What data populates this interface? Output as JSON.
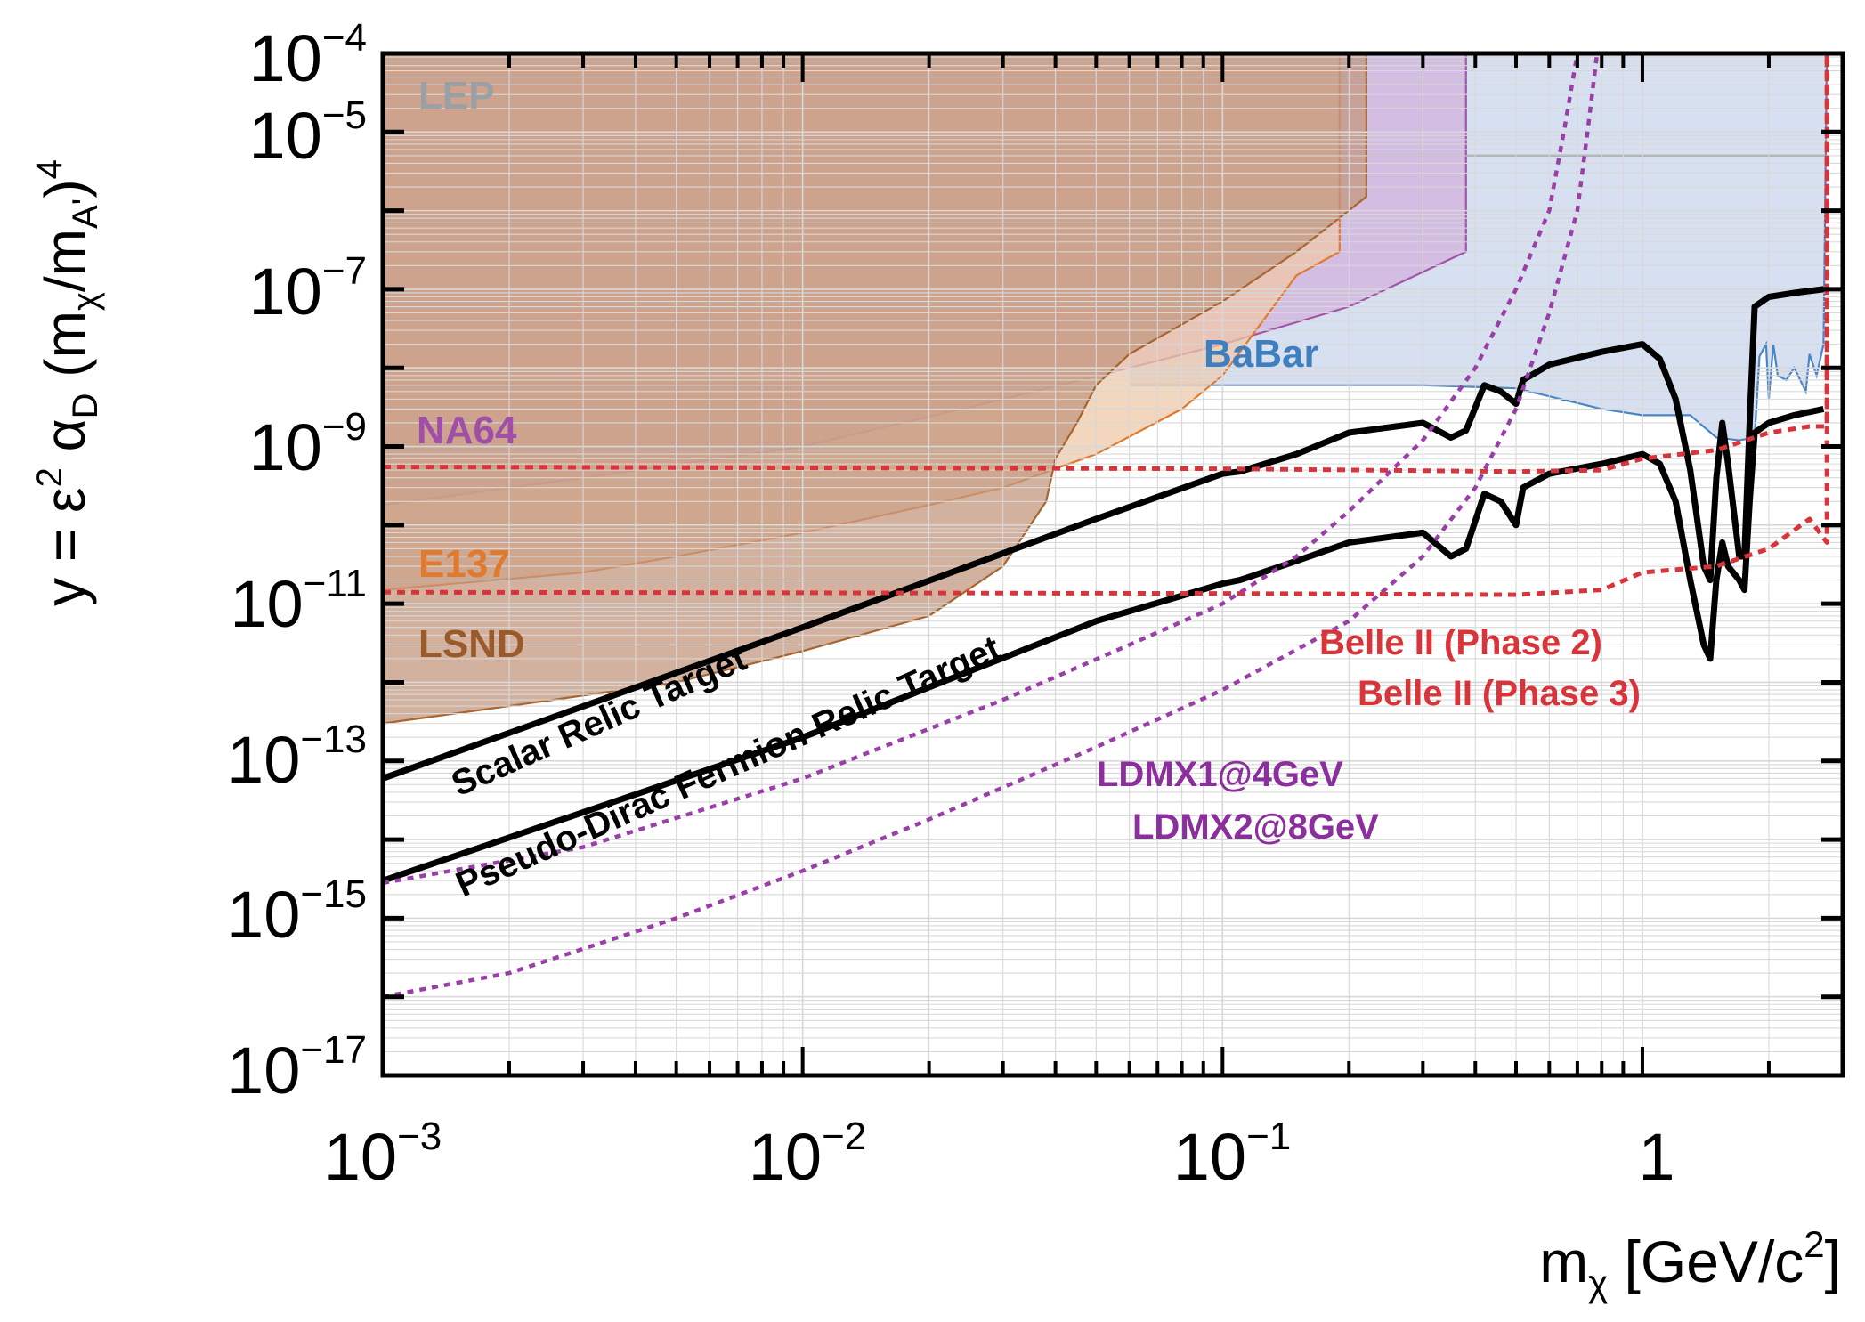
{
  "chart_data": {
    "type": "line",
    "title": "",
    "xscale": "log",
    "yscale": "log",
    "xlim": [
      0.001,
      3
    ],
    "ylim": [
      1e-17,
      0.0001
    ],
    "grid": true,
    "xlabel": {
      "base": "m",
      "sub": "χ",
      "unit": " [GeV/c",
      "sup": "2",
      "end": "]"
    },
    "ylabel": {
      "p1": "y = ε",
      "sup1": "2",
      "p2": " α",
      "sub1": "D",
      "p3": " (m",
      "sub2": "χ",
      "p4": "/m",
      "sub3": "A'",
      "p5": ")",
      "sup2": "4"
    },
    "x_ticks": [
      {
        "value": 0.001,
        "base": "10",
        "exp": "−3"
      },
      {
        "value": 0.01,
        "base": "10",
        "exp": "−2"
      },
      {
        "value": 0.1,
        "base": "10",
        "exp": "−1"
      },
      {
        "value": 1,
        "base": "1",
        "exp": ""
      }
    ],
    "y_ticks": [
      {
        "value": 0.0001,
        "base": "10",
        "exp": "−4"
      },
      {
        "value": 1e-05,
        "base": "10",
        "exp": "−5"
      },
      {
        "value": 1e-07,
        "base": "10",
        "exp": "−7"
      },
      {
        "value": 1e-09,
        "base": "10",
        "exp": "−9"
      },
      {
        "value": 1e-11,
        "base": "10",
        "exp": "−11"
      },
      {
        "value": 1e-13,
        "base": "10",
        "exp": "−13"
      },
      {
        "value": 1e-15,
        "base": "10",
        "exp": "−15"
      },
      {
        "value": 1e-17,
        "base": "10",
        "exp": "−17"
      }
    ],
    "excluded_regions": [
      {
        "name": "BaBar",
        "fill": "#c9d5ec",
        "stroke": "#4a86c5",
        "boundary": [
          [
            0.06,
            6e-09
          ],
          [
            0.3,
            6e-09
          ],
          [
            0.5,
            5.5e-09
          ],
          [
            0.8,
            3e-09
          ],
          [
            1.0,
            2.5e-09
          ],
          [
            1.3,
            2.5e-09
          ],
          [
            1.5,
            1.3e-09
          ],
          [
            1.7,
            1.2e-09
          ],
          [
            1.85,
            1.3e-09
          ],
          [
            1.9,
            1.4e-08
          ],
          [
            1.97,
            2e-08
          ],
          [
            2.0,
            4e-09
          ],
          [
            2.05,
            2e-08
          ],
          [
            2.1,
            8e-09
          ],
          [
            2.2,
            7e-09
          ],
          [
            2.3,
            1e-08
          ],
          [
            2.45,
            5e-09
          ],
          [
            2.5,
            1.5e-08
          ],
          [
            2.6,
            8e-09
          ],
          [
            2.7,
            2e-08
          ],
          [
            2.75,
            0.0001
          ]
        ]
      },
      {
        "name": "LEP",
        "fill": "#c9d5ec",
        "stroke": "#8a8a8a",
        "boundary": [
          [
            0.001,
            5e-06
          ],
          [
            2.75,
            5e-06
          ]
        ]
      },
      {
        "name": "NA64",
        "fill": "#d2b2dc",
        "stroke": "#a454a8",
        "boundary": [
          [
            0.001,
            1.8e-10
          ],
          [
            0.003,
            4e-10
          ],
          [
            0.01,
            1e-09
          ],
          [
            0.03,
            4e-09
          ],
          [
            0.06,
            1e-08
          ],
          [
            0.1,
            2e-08
          ],
          [
            0.2,
            6e-08
          ],
          [
            0.38,
            3e-07
          ],
          [
            0.38,
            0.0001
          ]
        ]
      },
      {
        "name": "E137",
        "fill": "#efc8a8",
        "stroke": "#e07a2e",
        "boundary": [
          [
            0.001,
            1.5e-11
          ],
          [
            0.003,
            2.5e-11
          ],
          [
            0.005,
            4e-11
          ],
          [
            0.01,
            8e-11
          ],
          [
            0.02,
            1.8e-10
          ],
          [
            0.03,
            3e-10
          ],
          [
            0.05,
            8e-10
          ],
          [
            0.08,
            3e-09
          ],
          [
            0.1,
            8e-09
          ],
          [
            0.15,
            1.5e-07
          ],
          [
            0.19,
            3e-07
          ],
          [
            0.19,
            0.0001
          ]
        ]
      },
      {
        "name": "LSND",
        "fill": "#c3977f",
        "stroke": "#a8652d",
        "boundary": [
          [
            0.001,
            3e-13
          ],
          [
            0.002,
            5e-13
          ],
          [
            0.005,
            1e-12
          ],
          [
            0.01,
            2.5e-12
          ],
          [
            0.02,
            7e-12
          ],
          [
            0.03,
            3e-11
          ],
          [
            0.038,
            2e-10
          ],
          [
            0.04,
            7e-10
          ],
          [
            0.045,
            2e-09
          ],
          [
            0.05,
            6e-09
          ],
          [
            0.06,
            1.5e-08
          ],
          [
            0.1,
            7e-08
          ],
          [
            0.15,
            3e-07
          ],
          [
            0.22,
            1.5e-06
          ],
          [
            0.22,
            0.0001
          ]
        ]
      }
    ],
    "series": [
      {
        "name": "Scalar Relic Target",
        "style": "solid-black",
        "points": [
          [
            0.001,
            6e-14
          ],
          [
            0.01,
            5e-12
          ],
          [
            0.05,
            1.2e-10
          ],
          [
            0.1,
            4.5e-10
          ],
          [
            0.11,
            4.8e-10
          ],
          [
            0.15,
            8e-10
          ],
          [
            0.2,
            1.5e-09
          ],
          [
            0.3,
            2e-09
          ],
          [
            0.35,
            1.3e-09
          ],
          [
            0.38,
            1.6e-09
          ],
          [
            0.42,
            6e-09
          ],
          [
            0.46,
            5e-09
          ],
          [
            0.5,
            3.5e-09
          ],
          [
            0.52,
            7e-09
          ],
          [
            0.6,
            1.1e-08
          ],
          [
            0.8,
            1.6e-08
          ],
          [
            1.0,
            2e-08
          ],
          [
            1.1,
            1.3e-08
          ],
          [
            1.2,
            4e-09
          ],
          [
            1.3,
            5e-10
          ],
          [
            1.4,
            3e-11
          ],
          [
            1.45,
            2e-11
          ],
          [
            1.5,
            4e-10
          ],
          [
            1.55,
            2e-09
          ],
          [
            1.6,
            6e-10
          ],
          [
            1.7,
            4e-11
          ],
          [
            1.75,
            4e-11
          ],
          [
            1.8,
            2e-09
          ],
          [
            1.85,
            6e-08
          ],
          [
            2.0,
            8e-08
          ],
          [
            2.3,
            9e-08
          ],
          [
            2.7,
            1e-07
          ]
        ]
      },
      {
        "name": "Pseudo-Dirac Fermion Relic Target",
        "style": "solid-black",
        "points": [
          [
            0.001,
            3e-15
          ],
          [
            0.01,
            2e-13
          ],
          [
            0.05,
            6e-12
          ],
          [
            0.1,
            1.8e-11
          ],
          [
            0.11,
            2e-11
          ],
          [
            0.15,
            3.5e-11
          ],
          [
            0.2,
            6e-11
          ],
          [
            0.3,
            8e-11
          ],
          [
            0.35,
            4e-11
          ],
          [
            0.38,
            5e-11
          ],
          [
            0.42,
            2.5e-10
          ],
          [
            0.46,
            2e-10
          ],
          [
            0.5,
            1e-10
          ],
          [
            0.52,
            3e-10
          ],
          [
            0.6,
            4.5e-10
          ],
          [
            0.8,
            6e-10
          ],
          [
            1.0,
            8e-10
          ],
          [
            1.1,
            6e-10
          ],
          [
            1.2,
            2e-10
          ],
          [
            1.3,
            2e-11
          ],
          [
            1.4,
            3e-12
          ],
          [
            1.45,
            2e-12
          ],
          [
            1.5,
            2e-11
          ],
          [
            1.55,
            6e-11
          ],
          [
            1.6,
            3e-11
          ],
          [
            1.7,
            2e-11
          ],
          [
            1.75,
            1.5e-11
          ],
          [
            1.8,
            2e-10
          ],
          [
            1.85,
            1.5e-09
          ],
          [
            2.0,
            2e-09
          ],
          [
            2.3,
            2.5e-09
          ],
          [
            2.7,
            3e-09
          ]
        ]
      },
      {
        "name": "Belle II (Phase 2)",
        "style": "dashed-red",
        "points": [
          [
            0.001,
            5.5e-10
          ],
          [
            0.1,
            5.2e-10
          ],
          [
            0.5,
            4.8e-10
          ],
          [
            0.8,
            5e-10
          ],
          [
            1.0,
            7e-10
          ],
          [
            1.5,
            9e-10
          ],
          [
            2.0,
            1.5e-09
          ],
          [
            2.5,
            1.8e-09
          ],
          [
            2.75,
            1.8e-09
          ],
          [
            2.75,
            0.0001
          ]
        ]
      },
      {
        "name": "Belle II (Phase 3)",
        "style": "dashed-red",
        "points": [
          [
            0.001,
            1.4e-11
          ],
          [
            0.1,
            1.35e-11
          ],
          [
            0.5,
            1.3e-11
          ],
          [
            0.8,
            1.5e-11
          ],
          [
            1.0,
            2.5e-11
          ],
          [
            1.5,
            3e-11
          ],
          [
            2.0,
            5e-11
          ],
          [
            2.5,
            1.2e-10
          ],
          [
            2.75,
            6e-11
          ],
          [
            2.75,
            0.0001
          ]
        ]
      },
      {
        "name": "LDMX1@4GeV",
        "style": "dotted-purple",
        "points": [
          [
            0.001,
            2.8e-15
          ],
          [
            0.003,
            8e-15
          ],
          [
            0.01,
            6e-14
          ],
          [
            0.03,
            6e-13
          ],
          [
            0.06,
            3e-12
          ],
          [
            0.1,
            1e-11
          ],
          [
            0.15,
            4e-11
          ],
          [
            0.2,
            1.5e-10
          ],
          [
            0.3,
            1.2e-09
          ],
          [
            0.4,
            1e-08
          ],
          [
            0.5,
            1e-07
          ],
          [
            0.6,
            1e-06
          ],
          [
            0.65,
            1e-05
          ],
          [
            0.7,
            0.0001
          ]
        ]
      },
      {
        "name": "LDMX2@8GeV",
        "style": "dotted-purple",
        "points": [
          [
            0.001,
            1e-16
          ],
          [
            0.002,
            2e-16
          ],
          [
            0.005,
            1e-15
          ],
          [
            0.01,
            4e-15
          ],
          [
            0.02,
            1.8e-14
          ],
          [
            0.05,
            1.5e-13
          ],
          [
            0.1,
            8e-13
          ],
          [
            0.2,
            6e-12
          ],
          [
            0.3,
            4e-11
          ],
          [
            0.4,
            3e-10
          ],
          [
            0.5,
            3e-09
          ],
          [
            0.6,
            5e-08
          ],
          [
            0.7,
            1e-06
          ],
          [
            0.74,
            1e-05
          ],
          [
            0.78,
            0.0001
          ]
        ]
      }
    ],
    "annotations": [
      {
        "name": "label-lep",
        "text": "LEP",
        "color": "#9aa0a6"
      },
      {
        "name": "label-babar",
        "text": "BaBar",
        "color": "#3f7fbf"
      },
      {
        "name": "label-na64",
        "text": "NA64",
        "color": "#a04fa8"
      },
      {
        "name": "label-e137",
        "text": "E137",
        "color": "#e07a2e"
      },
      {
        "name": "label-lsnd",
        "text": "LSND",
        "color": "#9a5a2a"
      },
      {
        "name": "label-scalar",
        "text": "Scalar Relic Target",
        "color": "#000000"
      },
      {
        "name": "label-pseudo-dirac",
        "text": "Pseudo-Dirac Fermion Relic Target",
        "color": "#000000"
      },
      {
        "name": "label-belle2-phase2",
        "text": "Belle II (Phase 2)",
        "color": "#d8343a"
      },
      {
        "name": "label-belle2-phase3",
        "text": "Belle II (Phase 3)",
        "color": "#d8343a"
      },
      {
        "name": "label-ldmx1",
        "text": "LDMX1@4GeV",
        "color": "#8a2f9c"
      },
      {
        "name": "label-ldmx2",
        "text": "LDMX2@8GeV",
        "color": "#8a2f9c"
      }
    ]
  }
}
